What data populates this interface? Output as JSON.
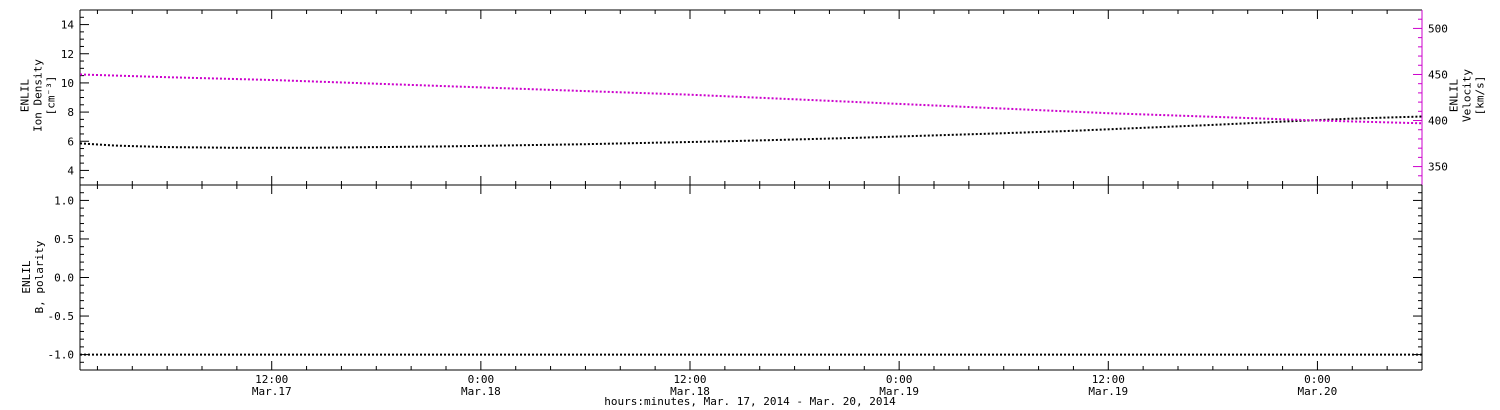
{
  "figure": {
    "background": "#ffffff",
    "accent_magenta": "#cc00cc",
    "axis_color": "#000000"
  },
  "chart_data": [
    {
      "type": "line",
      "panel": "top",
      "x_range": [
        1,
        78
      ],
      "x_minor_step": 2,
      "x_major_ticks": [
        12,
        24,
        36,
        48,
        60,
        72
      ],
      "grid": false,
      "axes": {
        "left": {
          "label_lines": [
            "ENLIL",
            "Ion Density",
            "[cm⁻³]"
          ],
          "range": [
            3,
            15
          ],
          "major_ticks": [
            4,
            6,
            8,
            10,
            12,
            14
          ],
          "minor_step": 0.5,
          "decimals": 0,
          "color": "#000000"
        },
        "right": {
          "label_lines": [
            "ENLIL",
            "Velocity",
            "[km/s]"
          ],
          "range": [
            330,
            520
          ],
          "major_ticks": [
            350,
            400,
            450,
            500
          ],
          "minor_step": 10,
          "decimals": 0,
          "color": "#cc00cc"
        }
      },
      "series": [
        {
          "name": "ion-density",
          "axis": "left",
          "color": "#000000",
          "points": [
            [
              1,
              5.85
            ],
            [
              3,
              5.7
            ],
            [
              6,
              5.6
            ],
            [
              10,
              5.55
            ],
            [
              14,
              5.55
            ],
            [
              18,
              5.6
            ],
            [
              22,
              5.65
            ],
            [
              26,
              5.72
            ],
            [
              30,
              5.8
            ],
            [
              34,
              5.9
            ],
            [
              38,
              6.0
            ],
            [
              42,
              6.12
            ],
            [
              46,
              6.25
            ],
            [
              50,
              6.4
            ],
            [
              54,
              6.55
            ],
            [
              58,
              6.72
            ],
            [
              62,
              6.92
            ],
            [
              66,
              7.12
            ],
            [
              70,
              7.35
            ],
            [
              74,
              7.55
            ],
            [
              78,
              7.7
            ]
          ]
        },
        {
          "name": "velocity",
          "axis": "right",
          "color": "#cc00cc",
          "points": [
            [
              1,
              450
            ],
            [
              6,
              447
            ],
            [
              12,
              444
            ],
            [
              18,
              440
            ],
            [
              24,
              436
            ],
            [
              30,
              432
            ],
            [
              36,
              428
            ],
            [
              42,
              423
            ],
            [
              48,
              418
            ],
            [
              54,
              413
            ],
            [
              60,
              408
            ],
            [
              66,
              404
            ],
            [
              72,
              400
            ],
            [
              78,
              397
            ]
          ]
        }
      ]
    },
    {
      "type": "line",
      "panel": "bottom",
      "x_range": [
        1,
        78
      ],
      "x_minor_step": 2,
      "x_major_ticks": [
        12,
        24,
        36,
        48,
        60,
        72
      ],
      "x_tick_labels": [
        {
          "time": "12:00",
          "date": "Mar.17"
        },
        {
          "time": "0:00",
          "date": "Mar.18"
        },
        {
          "time": "12:00",
          "date": "Mar.18"
        },
        {
          "time": "0:00",
          "date": "Mar.19"
        },
        {
          "time": "12:00",
          "date": "Mar.19"
        },
        {
          "time": "0:00",
          "date": "Mar.20"
        }
      ],
      "xlabel": "hours:minutes, Mar. 17, 2014 - Mar. 20, 2014",
      "grid": false,
      "axes": {
        "left": {
          "label_lines": [
            "ENLIL",
            "B, polarity"
          ],
          "range": [
            -1.2,
            1.2
          ],
          "major_ticks": [
            -1.0,
            -0.5,
            0.0,
            0.5,
            1.0
          ],
          "minor_step": 0.1,
          "decimals": 1,
          "color": "#000000"
        }
      },
      "series": [
        {
          "name": "b-polarity",
          "axis": "left",
          "color": "#000000",
          "points": [
            [
              1,
              -1.0
            ],
            [
              78,
              -1.0
            ]
          ]
        }
      ]
    }
  ]
}
